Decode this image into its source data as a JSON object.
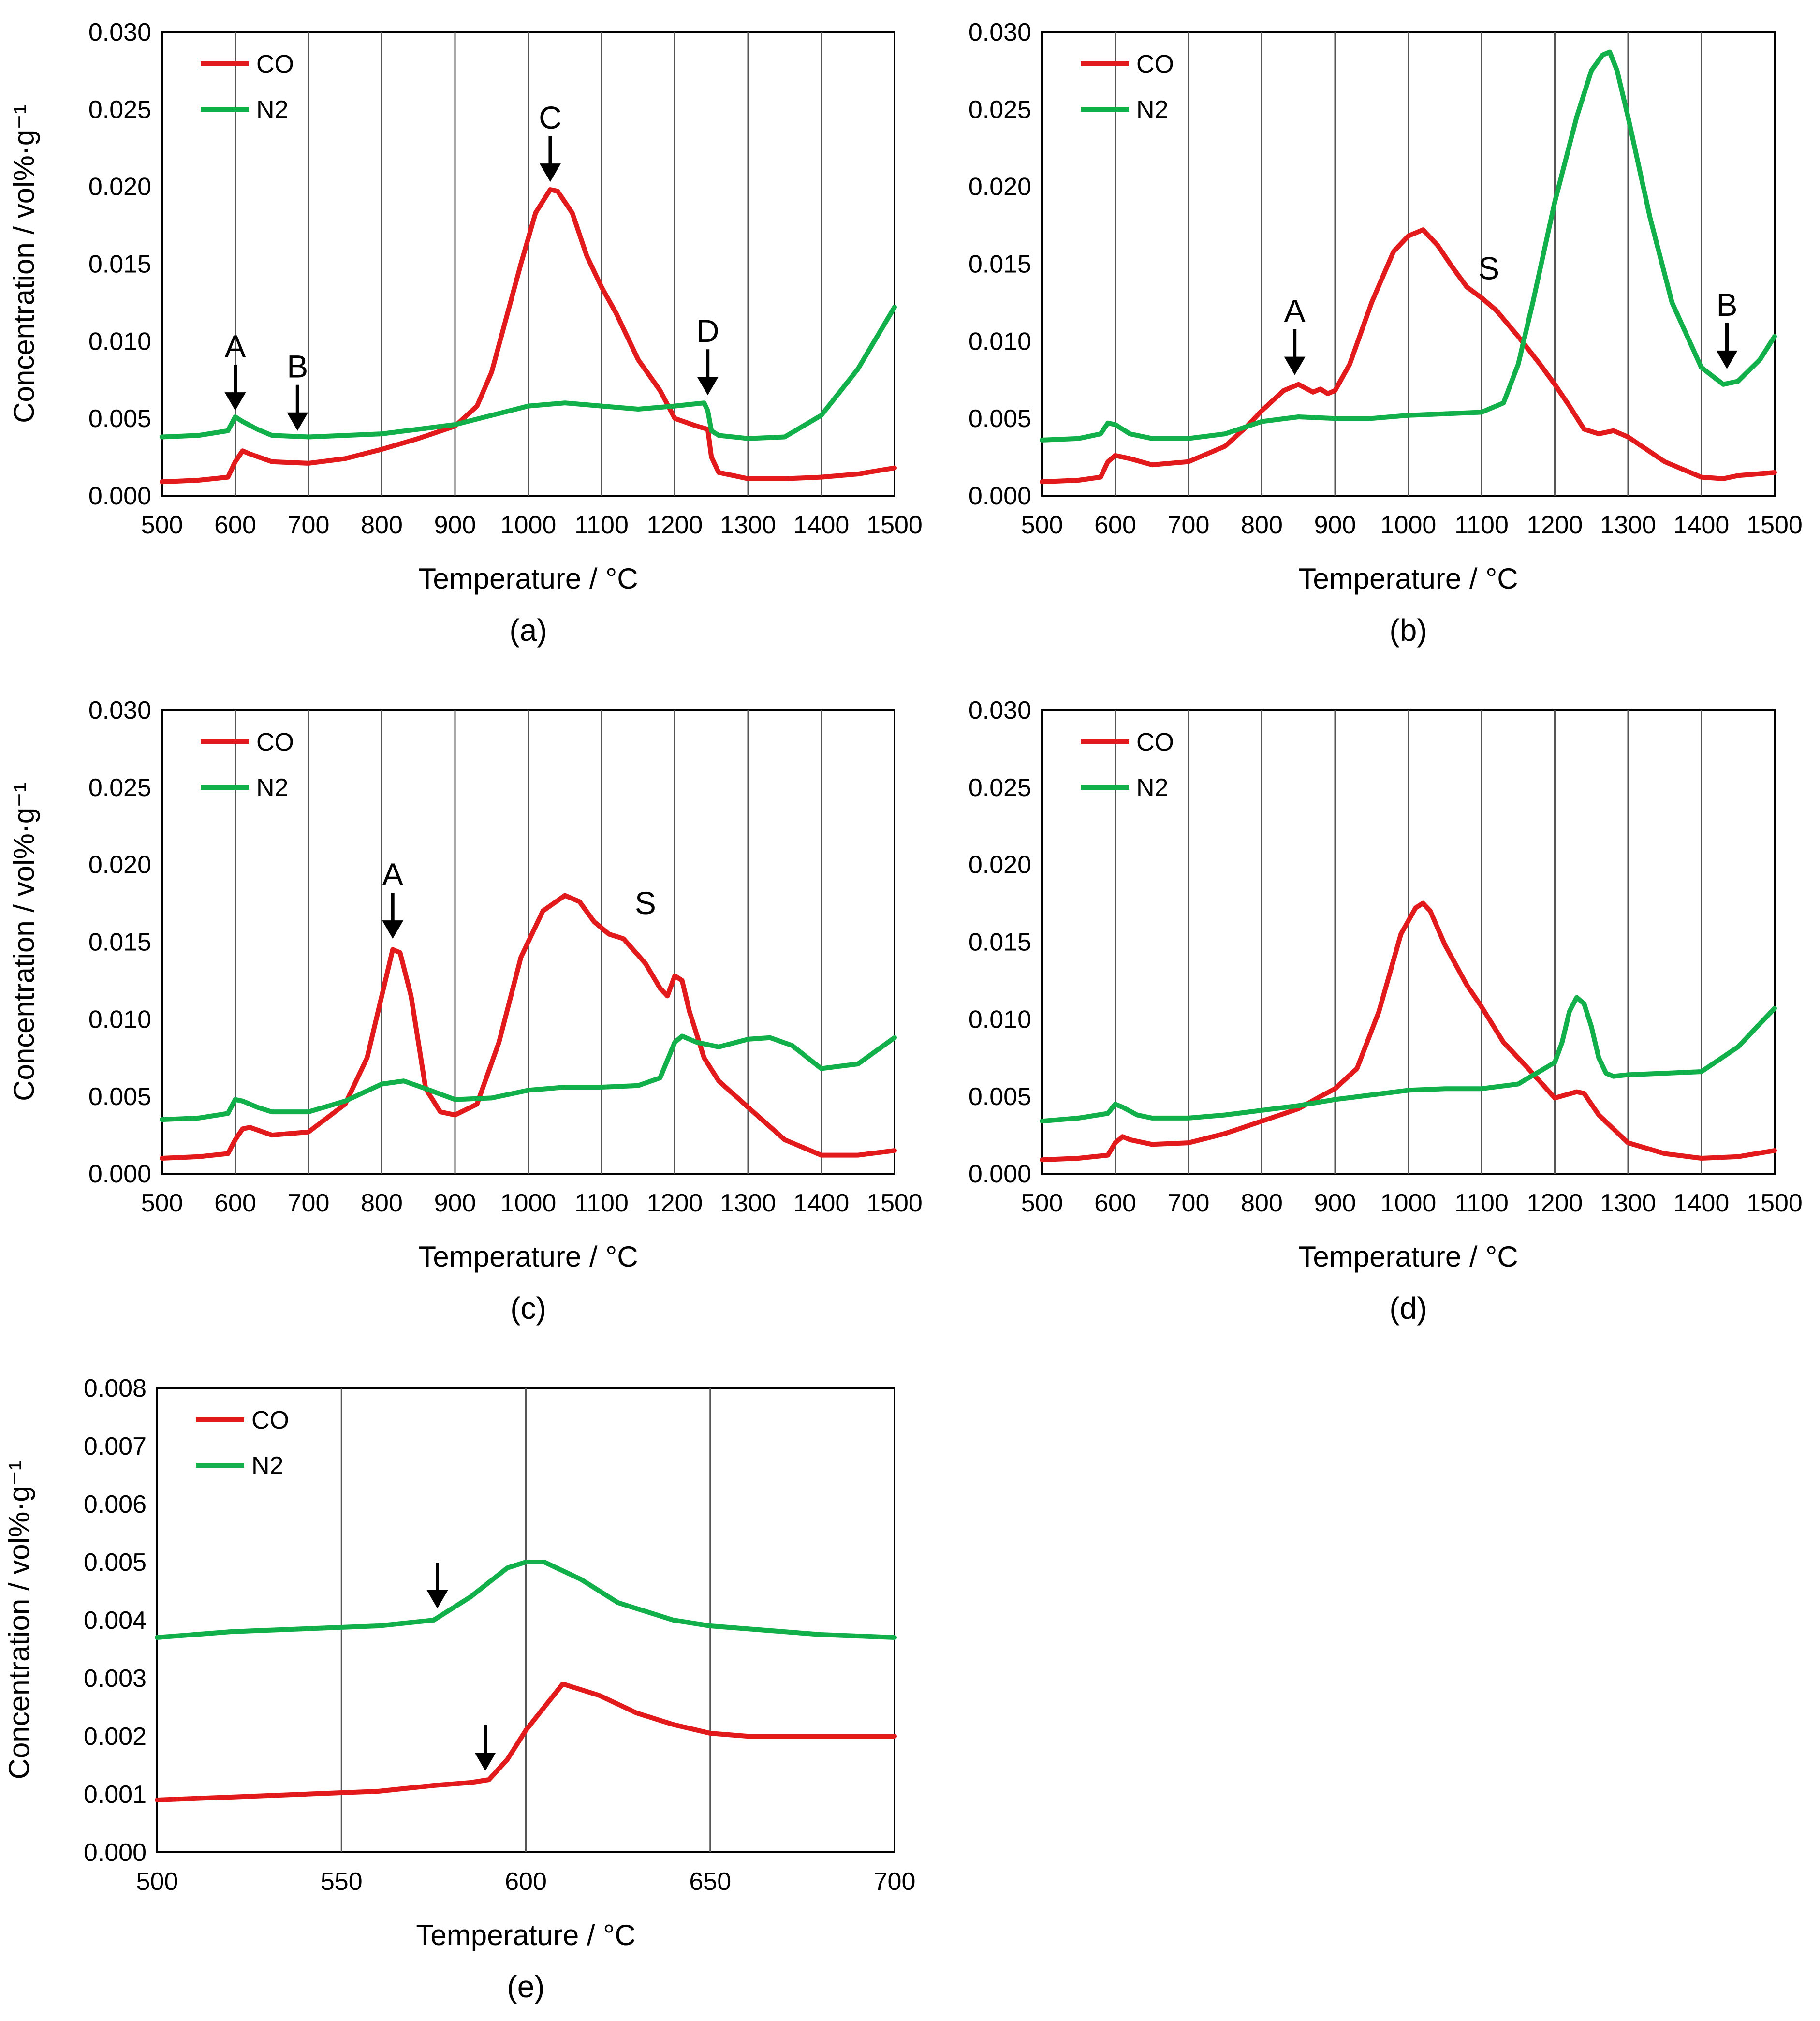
{
  "colors": {
    "CO": "#e31a1c",
    "N2": "#12b04a",
    "grid": "#555555",
    "axis": "#000000"
  },
  "chart_data": [
    {
      "type": "line",
      "panel_label": "(a)",
      "xlabel": "Temperature / °C",
      "ylabel": "Concentration / vol%·g⁻¹",
      "xlim": [
        500,
        1500
      ],
      "ylim": [
        0,
        0.03
      ],
      "xticks": [
        500,
        600,
        700,
        800,
        900,
        1000,
        1100,
        1200,
        1300,
        1400,
        1500
      ],
      "yticks": [
        0,
        0.005,
        0.01,
        0.015,
        0.02,
        0.025,
        0.03
      ],
      "ytick_decimals": 3,
      "grid": "vertical",
      "legend_position": "top-left",
      "series": [
        {
          "name": "CO",
          "color": "#e31a1c",
          "x": [
            500,
            550,
            590,
            600,
            610,
            620,
            650,
            700,
            750,
            800,
            850,
            900,
            930,
            950,
            970,
            990,
            1010,
            1030,
            1040,
            1060,
            1080,
            1100,
            1120,
            1150,
            1180,
            1200,
            1230,
            1245,
            1250,
            1260,
            1300,
            1350,
            1400,
            1450,
            1500
          ],
          "y": [
            0.0009,
            0.001,
            0.0012,
            0.0022,
            0.0029,
            0.0027,
            0.0022,
            0.0021,
            0.0024,
            0.003,
            0.0037,
            0.0045,
            0.0058,
            0.008,
            0.0115,
            0.015,
            0.0183,
            0.0198,
            0.0197,
            0.0183,
            0.0155,
            0.0135,
            0.0118,
            0.0088,
            0.0068,
            0.005,
            0.0045,
            0.0043,
            0.0025,
            0.0015,
            0.0011,
            0.0011,
            0.0012,
            0.0014,
            0.0018
          ]
        },
        {
          "name": "N2",
          "color": "#12b04a",
          "x": [
            500,
            550,
            590,
            600,
            610,
            630,
            650,
            700,
            800,
            900,
            950,
            1000,
            1050,
            1100,
            1150,
            1200,
            1240,
            1245,
            1250,
            1260,
            1300,
            1350,
            1400,
            1450,
            1500
          ],
          "y": [
            0.0038,
            0.0039,
            0.0042,
            0.0051,
            0.0048,
            0.0043,
            0.0039,
            0.0038,
            0.004,
            0.0046,
            0.0052,
            0.0058,
            0.006,
            0.0058,
            0.0056,
            0.0058,
            0.006,
            0.0055,
            0.0042,
            0.0039,
            0.0037,
            0.0038,
            0.0052,
            0.0082,
            0.0122
          ]
        }
      ],
      "annotations": [
        {
          "text": "A",
          "x": 600,
          "y": 0.0055,
          "label": "A"
        },
        {
          "text": "B",
          "x": 685,
          "y": 0.0042,
          "label": "B"
        },
        {
          "text": "C",
          "x": 1030,
          "y": 0.0203,
          "label": "C"
        },
        {
          "text": "D",
          "x": 1245,
          "y": 0.0065,
          "label": "D"
        }
      ],
      "texts": []
    },
    {
      "type": "line",
      "panel_label": "(b)",
      "xlabel": "Temperature / °C",
      "ylabel": "",
      "xlim": [
        500,
        1500
      ],
      "ylim": [
        0,
        0.03
      ],
      "xticks": [
        500,
        600,
        700,
        800,
        900,
        1000,
        1100,
        1200,
        1300,
        1400,
        1500
      ],
      "yticks": [
        0,
        0.005,
        0.01,
        0.015,
        0.02,
        0.025,
        0.03
      ],
      "ytick_decimals": 3,
      "grid": "vertical",
      "legend_position": "top-left",
      "series": [
        {
          "name": "CO",
          "color": "#e31a1c",
          "x": [
            500,
            550,
            580,
            590,
            600,
            610,
            620,
            650,
            700,
            750,
            780,
            800,
            830,
            850,
            870,
            880,
            890,
            900,
            920,
            950,
            980,
            1000,
            1020,
            1040,
            1060,
            1080,
            1100,
            1120,
            1150,
            1180,
            1200,
            1220,
            1240,
            1260,
            1280,
            1300,
            1350,
            1400,
            1430,
            1450,
            1500
          ],
          "y": [
            0.0009,
            0.001,
            0.0012,
            0.0022,
            0.0026,
            0.0025,
            0.0024,
            0.002,
            0.0022,
            0.0032,
            0.0045,
            0.0055,
            0.0068,
            0.0072,
            0.0067,
            0.0069,
            0.0066,
            0.0068,
            0.0085,
            0.0125,
            0.0158,
            0.0168,
            0.0172,
            0.0162,
            0.0148,
            0.0135,
            0.0128,
            0.012,
            0.0103,
            0.0085,
            0.0072,
            0.0058,
            0.0043,
            0.004,
            0.0042,
            0.0038,
            0.0022,
            0.0012,
            0.0011,
            0.0013,
            0.0015
          ]
        },
        {
          "name": "N2",
          "color": "#12b04a",
          "x": [
            500,
            550,
            580,
            590,
            600,
            620,
            650,
            700,
            750,
            800,
            850,
            900,
            950,
            1000,
            1050,
            1100,
            1130,
            1150,
            1170,
            1200,
            1230,
            1250,
            1265,
            1275,
            1285,
            1300,
            1330,
            1360,
            1400,
            1430,
            1450,
            1480,
            1500
          ],
          "y": [
            0.0036,
            0.0037,
            0.004,
            0.0047,
            0.0046,
            0.004,
            0.0037,
            0.0037,
            0.004,
            0.0048,
            0.0051,
            0.005,
            0.005,
            0.0052,
            0.0053,
            0.0054,
            0.006,
            0.0085,
            0.0125,
            0.019,
            0.0245,
            0.0275,
            0.0285,
            0.0287,
            0.0275,
            0.0245,
            0.018,
            0.0125,
            0.0083,
            0.0072,
            0.0074,
            0.0088,
            0.0103
          ]
        }
      ],
      "annotations": [
        {
          "text": "A",
          "x": 845,
          "y": 0.0078,
          "label": "A"
        },
        {
          "text": "B",
          "x": 1435,
          "y": 0.0082,
          "label": "B"
        }
      ],
      "texts": [
        {
          "text": "S",
          "x": 1110,
          "y": 0.014
        }
      ]
    },
    {
      "type": "line",
      "panel_label": "(c)",
      "xlabel": "Temperature / °C",
      "ylabel": "Concentration / vol%·g⁻¹",
      "xlim": [
        500,
        1500
      ],
      "ylim": [
        0,
        0.03
      ],
      "xticks": [
        500,
        600,
        700,
        800,
        900,
        1000,
        1100,
        1200,
        1300,
        1400,
        1500
      ],
      "yticks": [
        0,
        0.005,
        0.01,
        0.015,
        0.02,
        0.025,
        0.03
      ],
      "ytick_decimals": 3,
      "grid": "vertical",
      "legend_position": "top-left",
      "series": [
        {
          "name": "CO",
          "color": "#e31a1c",
          "x": [
            500,
            550,
            590,
            600,
            610,
            620,
            650,
            700,
            750,
            780,
            800,
            815,
            825,
            840,
            860,
            880,
            900,
            930,
            960,
            990,
            1020,
            1050,
            1070,
            1090,
            1110,
            1130,
            1160,
            1180,
            1190,
            1200,
            1210,
            1220,
            1240,
            1260,
            1300,
            1350,
            1400,
            1450,
            1500
          ],
          "y": [
            0.001,
            0.0011,
            0.0013,
            0.0022,
            0.0029,
            0.003,
            0.0025,
            0.0027,
            0.0045,
            0.0075,
            0.0115,
            0.0145,
            0.0143,
            0.0115,
            0.0055,
            0.004,
            0.0038,
            0.0045,
            0.0085,
            0.014,
            0.017,
            0.018,
            0.0176,
            0.0163,
            0.0155,
            0.0152,
            0.0136,
            0.012,
            0.0115,
            0.0128,
            0.0125,
            0.0105,
            0.0075,
            0.006,
            0.0043,
            0.0022,
            0.0012,
            0.0012,
            0.0015
          ]
        },
        {
          "name": "N2",
          "color": "#12b04a",
          "x": [
            500,
            550,
            590,
            600,
            610,
            630,
            650,
            700,
            750,
            800,
            830,
            860,
            900,
            950,
            1000,
            1050,
            1100,
            1150,
            1180,
            1200,
            1210,
            1230,
            1260,
            1300,
            1330,
            1360,
            1400,
            1450,
            1500
          ],
          "y": [
            0.0035,
            0.0036,
            0.0039,
            0.0048,
            0.0047,
            0.0043,
            0.004,
            0.004,
            0.0047,
            0.0058,
            0.006,
            0.0055,
            0.0048,
            0.0049,
            0.0054,
            0.0056,
            0.0056,
            0.0057,
            0.0062,
            0.0085,
            0.0089,
            0.0085,
            0.0082,
            0.0087,
            0.0088,
            0.0083,
            0.0068,
            0.0071,
            0.0088
          ]
        }
      ],
      "annotations": [
        {
          "text": "A",
          "x": 815,
          "y": 0.0152,
          "label": "A"
        }
      ],
      "texts": [
        {
          "text": "S",
          "x": 1160,
          "y": 0.0168
        }
      ]
    },
    {
      "type": "line",
      "panel_label": "(d)",
      "xlabel": "Temperature / °C",
      "ylabel": "",
      "xlim": [
        500,
        1500
      ],
      "ylim": [
        0,
        0.03
      ],
      "xticks": [
        500,
        600,
        700,
        800,
        900,
        1000,
        1100,
        1200,
        1300,
        1400,
        1500
      ],
      "yticks": [
        0,
        0.005,
        0.01,
        0.015,
        0.02,
        0.025,
        0.03
      ],
      "ytick_decimals": 3,
      "grid": "vertical",
      "legend_position": "top-left",
      "series": [
        {
          "name": "CO",
          "color": "#e31a1c",
          "x": [
            500,
            550,
            590,
            600,
            610,
            620,
            650,
            700,
            750,
            800,
            850,
            880,
            900,
            930,
            960,
            990,
            1010,
            1020,
            1030,
            1050,
            1080,
            1100,
            1130,
            1160,
            1200,
            1230,
            1240,
            1260,
            1300,
            1350,
            1400,
            1450,
            1500
          ],
          "y": [
            0.0009,
            0.001,
            0.0012,
            0.002,
            0.0024,
            0.0022,
            0.0019,
            0.002,
            0.0026,
            0.0034,
            0.0042,
            0.005,
            0.0055,
            0.0068,
            0.0105,
            0.0155,
            0.0172,
            0.0175,
            0.017,
            0.0148,
            0.0122,
            0.0108,
            0.0085,
            0.007,
            0.0049,
            0.0053,
            0.0052,
            0.0038,
            0.002,
            0.0013,
            0.001,
            0.0011,
            0.0015
          ]
        },
        {
          "name": "N2",
          "color": "#12b04a",
          "x": [
            500,
            550,
            590,
            600,
            610,
            630,
            650,
            700,
            750,
            800,
            850,
            900,
            950,
            1000,
            1050,
            1100,
            1150,
            1200,
            1210,
            1220,
            1230,
            1240,
            1250,
            1260,
            1270,
            1280,
            1300,
            1350,
            1400,
            1450,
            1500
          ],
          "y": [
            0.0034,
            0.0036,
            0.0039,
            0.0045,
            0.0043,
            0.0038,
            0.0036,
            0.0036,
            0.0038,
            0.0041,
            0.0044,
            0.0048,
            0.0051,
            0.0054,
            0.0055,
            0.0055,
            0.0058,
            0.0072,
            0.0085,
            0.0105,
            0.0114,
            0.011,
            0.0095,
            0.0075,
            0.0065,
            0.0063,
            0.0064,
            0.0065,
            0.0066,
            0.0082,
            0.0107
          ]
        }
      ],
      "annotations": [],
      "texts": []
    },
    {
      "type": "line",
      "panel_label": "(e)",
      "xlabel": "Temperature / °C",
      "ylabel": "Concentration / vol%·g⁻¹",
      "xlim": [
        500,
        700
      ],
      "ylim": [
        0,
        0.008
      ],
      "xticks": [
        500,
        550,
        600,
        650,
        700
      ],
      "yticks": [
        0,
        0.001,
        0.002,
        0.003,
        0.004,
        0.005,
        0.006,
        0.007,
        0.008
      ],
      "ytick_decimals": 3,
      "grid": "vertical",
      "legend_position": "top-left",
      "series": [
        {
          "name": "CO",
          "color": "#e31a1c",
          "x": [
            500,
            520,
            540,
            560,
            575,
            585,
            590,
            595,
            600,
            605,
            610,
            620,
            630,
            640,
            650,
            660,
            680,
            700
          ],
          "y": [
            0.0009,
            0.00095,
            0.001,
            0.00105,
            0.00115,
            0.0012,
            0.00125,
            0.0016,
            0.0021,
            0.0025,
            0.0029,
            0.0027,
            0.0024,
            0.0022,
            0.00205,
            0.002,
            0.002,
            0.002
          ]
        },
        {
          "name": "N2",
          "color": "#12b04a",
          "x": [
            500,
            520,
            540,
            560,
            575,
            585,
            595,
            600,
            605,
            615,
            625,
            640,
            650,
            660,
            680,
            700
          ],
          "y": [
            0.0037,
            0.0038,
            0.00385,
            0.0039,
            0.004,
            0.0044,
            0.0049,
            0.005,
            0.005,
            0.0047,
            0.0043,
            0.004,
            0.0039,
            0.00385,
            0.00375,
            0.0037
          ]
        }
      ],
      "annotations": [
        {
          "text": "",
          "x": 576,
          "y": 0.0042,
          "label": ""
        },
        {
          "text": "",
          "x": 589,
          "y": 0.0014,
          "label": ""
        }
      ],
      "texts": []
    }
  ]
}
